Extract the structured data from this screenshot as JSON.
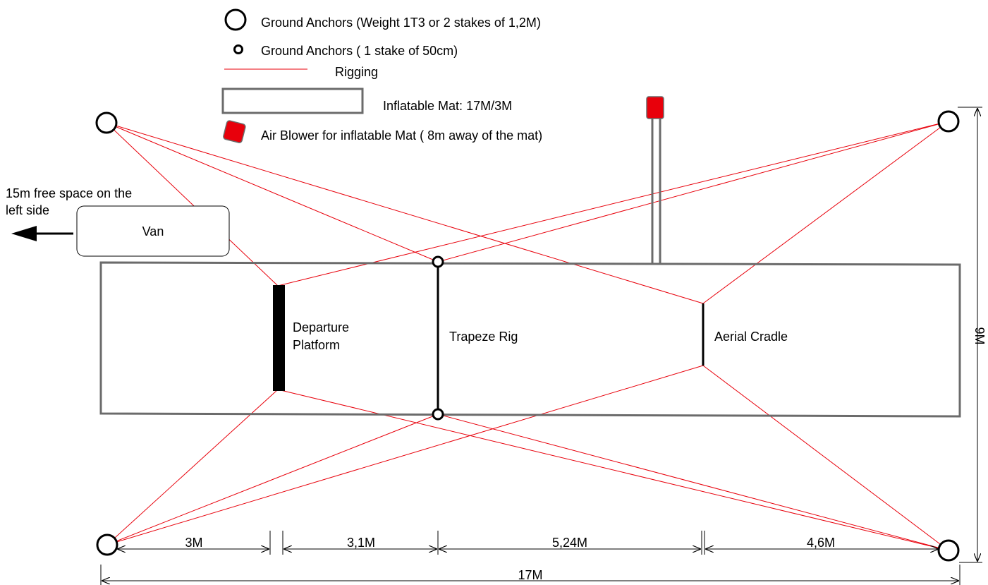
{
  "legend": {
    "large_anchor": "Ground Anchors (Weight 1T3 or 2 stakes of 1,2M)",
    "small_anchor": "Ground Anchors ( 1 stake of 50cm)",
    "rigging": "Rigging",
    "mat": "Inflatable Mat: 17M/3M",
    "blower": "Air Blower for inflatable Mat ( 8m away of the mat)"
  },
  "van_label": "Van",
  "free_space_note": [
    "15m free space on the",
    "left side"
  ],
  "structures": {
    "departure": [
      "Departure",
      "Platform"
    ],
    "trapeze": "Trapeze Rig",
    "cradle": "Aerial Cradle"
  },
  "dimensions": {
    "segments": [
      "3M",
      "3,1M",
      "5,24M",
      "4,6M"
    ],
    "total": "17M",
    "height": "9M"
  },
  "colors": {
    "rigging": "#e8000b",
    "outline": "#6b6b6b",
    "blower": "#e8000b",
    "anchor": "#000000"
  }
}
